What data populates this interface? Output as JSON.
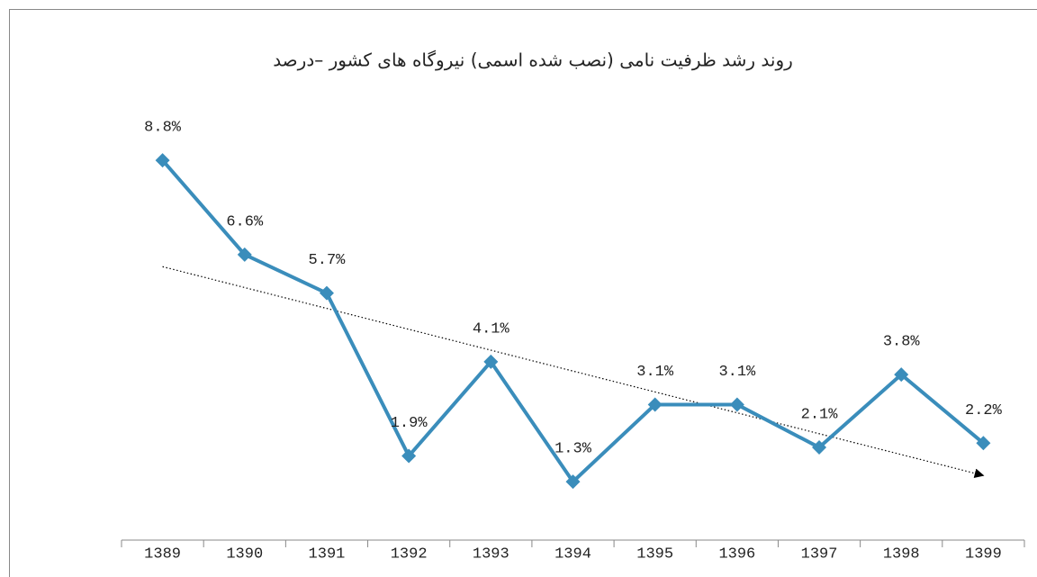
{
  "chart_data": {
    "type": "line",
    "title": "روند رشد ظرفیت نامی (نصب شده اسمی) نیروگاه های کشور –درصد",
    "categories": [
      "1389",
      "1390",
      "1391",
      "1392",
      "1393",
      "1394",
      "1395",
      "1396",
      "1397",
      "1398",
      "1399"
    ],
    "series": [
      {
        "color": "#3a8dbb",
        "values": [
          8.8,
          6.6,
          5.7,
          1.9,
          4.1,
          1.3,
          3.1,
          3.1,
          2.1,
          3.8,
          2.2
        ],
        "value_labels": [
          "8.8%",
          "6.6%",
          "5.7%",
          "1.9%",
          "4.1%",
          "1.3%",
          "3.1%",
          "3.1%",
          "2.1%",
          "3.8%",
          "2.2%"
        ]
      }
    ],
    "ylim": [
      0,
      10
    ],
    "trendline": true
  }
}
